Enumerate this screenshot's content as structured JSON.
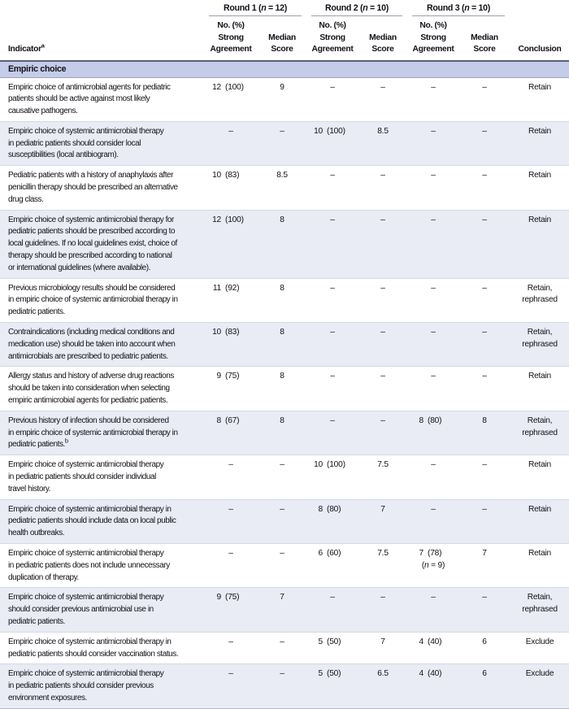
{
  "table": {
    "indicator_header": {
      "label": "Indicator",
      "sup": "a"
    },
    "conclusion_header": "Conclusion",
    "col_groups": [
      {
        "pre": "Round 1 (",
        "n": "n",
        "post": " = 12)"
      },
      {
        "pre": "Round 2 (",
        "n": "n",
        "post": " = 10)"
      },
      {
        "pre": "Round 3 (",
        "n": "n",
        "post": " = 10)"
      }
    ],
    "sub_headers": {
      "agreement": "No. (%)\nStrong\nAgreement",
      "median": "Median\nScore"
    },
    "section": "Empiric choice",
    "dash": "–",
    "rows": [
      {
        "indicator": "Empiric choice of antimicrobial agents for pediatric\npatients should be active against most likely\ncausative pathogens.",
        "a1": "12 (100)",
        "m1": "9",
        "a2": "–",
        "m2": "–",
        "a3": "–",
        "m3": "–",
        "conclusion": "Retain"
      },
      {
        "indicator": "Empiric choice of systemic antimicrobial therapy\nin pediatric patients should consider local\nsusceptibilities (local antibiogram).",
        "a1": "–",
        "m1": "–",
        "a2": "10 (100)",
        "m2": "8.5",
        "a3": "–",
        "m3": "–",
        "conclusion": "Retain"
      },
      {
        "indicator": "Pediatric patients with a history of anaphylaxis after\npenicillin therapy should be prescribed an alternative\ndrug class.",
        "a1": "10 (83)",
        "m1": "8.5",
        "a2": "–",
        "m2": "–",
        "a3": "–",
        "m3": "–",
        "conclusion": "Retain"
      },
      {
        "indicator": "Empiric choice of systemic antimicrobial therapy for\npediatric patients should be prescribed according to\nlocal guidelines. If no local guidelines exist, choice of\ntherapy should be prescribed according to national\nor international guidelines (where available).",
        "a1": "12 (100)",
        "m1": "8",
        "a2": "–",
        "m2": "–",
        "a3": "–",
        "m3": "–",
        "conclusion": "Retain"
      },
      {
        "indicator": "Previous microbiology results should be considered\nin empiric choice of systemic antimicrobial therapy in\npediatric patients.",
        "a1": "11 (92)",
        "m1": "8",
        "a2": "–",
        "m2": "–",
        "a3": "–",
        "m3": "–",
        "conclusion": "Retain,\nrephrased"
      },
      {
        "indicator": "Contraindications (including medical conditions and\nmedication use) should be taken into account when\nantimicrobials are prescribed to pediatric patients.",
        "a1": "10 (83)",
        "m1": "8",
        "a2": "–",
        "m2": "–",
        "a3": "–",
        "m3": "–",
        "conclusion": "Retain,\nrephrased"
      },
      {
        "indicator": "Allergy status and history of adverse drug reactions\nshould be taken into consideration when selecting\nempiric antimicrobial agents for pediatric patients.",
        "a1": "9 (75)",
        "m1": "8",
        "a2": "–",
        "m2": "–",
        "a3": "–",
        "m3": "–",
        "conclusion": "Retain"
      },
      {
        "indicator": "Previous history of infection should be considered\nin empiric choice of systemic antimicrobial therapy in\npediatric patients.",
        "sup": "b",
        "a1": "8 (67)",
        "m1": "8",
        "a2": "–",
        "m2": "–",
        "a3": "8 (80)",
        "m3": "8",
        "conclusion": "Retain,\nrephrased"
      },
      {
        "indicator": "Empiric choice of systemic antimicrobial therapy\nin pediatric patients should consider individual\ntravel history.",
        "a1": "–",
        "m1": "–",
        "a2": "10 (100)",
        "m2": "7.5",
        "a3": "–",
        "m3": "–",
        "conclusion": "Retain"
      },
      {
        "indicator": "Empiric choice of systemic antimicrobial therapy in\npediatric patients should include data on local public\nhealth outbreaks.",
        "a1": "–",
        "m1": "–",
        "a2": "8 (80)",
        "m2": "7",
        "a3": "–",
        "m3": "–",
        "conclusion": "Retain"
      },
      {
        "indicator": "Empiric choice of systemic antimicrobial therapy\nin pediatric patients does not include unnecessary\nduplication of therapy.",
        "a1": "–",
        "m1": "–",
        "a2": "6 (60)",
        "m2": "7.5",
        "a3": "7 (78)",
        "m3": "7",
        "note3": {
          "pre": "(",
          "n": "n",
          "post": " = 9)"
        },
        "conclusion": "Retain"
      },
      {
        "indicator": "Empiric choice of systemic antimicrobial therapy\nshould consider previous antimicrobial use in\npediatric patients.",
        "a1": "9 (75)",
        "m1": "7",
        "a2": "–",
        "m2": "–",
        "a3": "–",
        "m3": "–",
        "conclusion": "Retain,\nrephrased"
      },
      {
        "indicator": "Empiric choice of systemic antimicrobial therapy in\npediatric patients should consider vaccination status.",
        "a1": "–",
        "m1": "–",
        "a2": "5 (50)",
        "m2": "7",
        "a3": "4 (40)",
        "m3": "6",
        "conclusion": "Exclude"
      },
      {
        "indicator": "Empiric choice of systemic antimicrobial therapy\nin pediatric patients should consider previous\nenvironment exposures.",
        "a1": "–",
        "m1": "–",
        "a2": "5 (50)",
        "m2": "6.5",
        "a3": "4 (40)",
        "m3": "6",
        "conclusion": "Exclude"
      }
    ]
  },
  "colors": {
    "section_bg": "#c5cce8",
    "shade_row_bg": "#e9ebf5",
    "header_rule": "#5c6077",
    "group_underline": "#9aa0b2",
    "row_separator": "#d5d9e8"
  }
}
